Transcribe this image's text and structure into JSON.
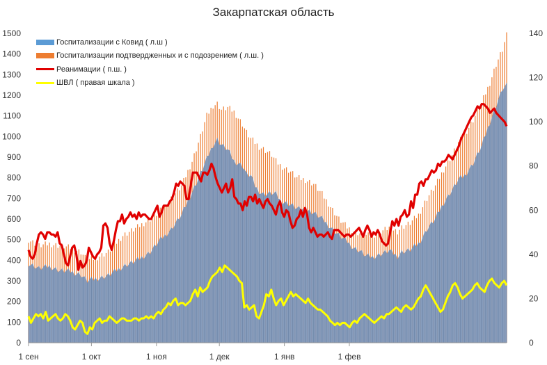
{
  "chart_data": {
    "type": "bar+line",
    "title": "Закарпатская область",
    "x_tick_labels": [
      "1 сен",
      "1 окт",
      "1 ноя",
      "1 дек",
      "1 янв",
      "1 фев"
    ],
    "left_axis": {
      "min": 0,
      "max": 1500,
      "ticks": [
        0,
        100,
        200,
        300,
        400,
        500,
        600,
        700,
        800,
        900,
        1000,
        1100,
        1200,
        1300,
        1400,
        1500
      ]
    },
    "right_axis": {
      "min": 0,
      "max": 140,
      "ticks": [
        0,
        20,
        40,
        60,
        80,
        100,
        120,
        140
      ]
    },
    "legend": [
      {
        "label": "Госпитализации с Ковид ( л.ш )",
        "color": "#5b9bd5",
        "kind": "area"
      },
      {
        "label": "Госпитализации подтвердженных и с подозрением ( л.ш. )",
        "color": "#ed7d31",
        "kind": "bar"
      },
      {
        "label": "Реанимации ( п.ш. )",
        "color": "#e00000",
        "kind": "line"
      },
      {
        "label": "ШВЛ ( правая шкала )",
        "color": "#ffff00",
        "kind": "line"
      }
    ],
    "series": [
      {
        "name": "Госпитализации с Ковид ( л.ш )",
        "axis": "left",
        "type": "area",
        "anchors": [
          [
            0,
            385
          ],
          [
            5,
            360
          ],
          [
            10,
            370
          ],
          [
            15,
            350
          ],
          [
            20,
            345
          ],
          [
            25,
            330
          ],
          [
            28,
            300
          ],
          [
            32,
            310
          ],
          [
            38,
            325
          ],
          [
            45,
            370
          ],
          [
            52,
            400
          ],
          [
            58,
            440
          ],
          [
            63,
            500
          ],
          [
            68,
            550
          ],
          [
            73,
            620
          ],
          [
            78,
            730
          ],
          [
            82,
            820
          ],
          [
            85,
            890
          ],
          [
            88,
            960
          ],
          [
            90,
            985
          ],
          [
            92,
            960
          ],
          [
            95,
            935
          ],
          [
            98,
            880
          ],
          [
            102,
            860
          ],
          [
            104,
            815
          ],
          [
            106,
            810
          ],
          [
            108,
            760
          ],
          [
            110,
            735
          ],
          [
            112,
            720
          ],
          [
            116,
            725
          ],
          [
            118,
            720
          ],
          [
            120,
            690
          ],
          [
            125,
            670
          ],
          [
            128,
            650
          ],
          [
            132,
            645
          ],
          [
            136,
            630
          ],
          [
            140,
            600
          ],
          [
            144,
            560
          ],
          [
            148,
            520
          ],
          [
            152,
            490
          ],
          [
            155,
            460
          ],
          [
            158,
            445
          ],
          [
            161,
            420
          ],
          [
            164,
            415
          ],
          [
            168,
            430
          ],
          [
            172,
            445
          ],
          [
            176,
            420
          ],
          [
            178,
            440
          ],
          [
            182,
            450
          ],
          [
            186,
            480
          ],
          [
            190,
            550
          ],
          [
            194,
            600
          ],
          [
            198,
            680
          ],
          [
            202,
            740
          ],
          [
            205,
            790
          ],
          [
            208,
            810
          ],
          [
            212,
            870
          ],
          [
            216,
            950
          ],
          [
            220,
            1070
          ],
          [
            223,
            1150
          ],
          [
            226,
            1230
          ],
          [
            228,
            1245
          ]
        ]
      },
      {
        "name": "Госпитализации подтвердженных и с подозрением ( л.ш. )",
        "axis": "left",
        "type": "bar",
        "anchors": [
          [
            0,
            500
          ],
          [
            5,
            470
          ],
          [
            10,
            480
          ],
          [
            15,
            470
          ],
          [
            20,
            460
          ],
          [
            25,
            440
          ],
          [
            28,
            400
          ],
          [
            32,
            410
          ],
          [
            38,
            440
          ],
          [
            45,
            520
          ],
          [
            52,
            560
          ],
          [
            58,
            600
          ],
          [
            63,
            640
          ],
          [
            68,
            700
          ],
          [
            73,
            760
          ],
          [
            78,
            880
          ],
          [
            82,
            1000
          ],
          [
            85,
            1100
          ],
          [
            88,
            1150
          ],
          [
            90,
            1160
          ],
          [
            92,
            1130
          ],
          [
            95,
            1140
          ],
          [
            98,
            1120
          ],
          [
            102,
            1060
          ],
          [
            104,
            1020
          ],
          [
            106,
            990
          ],
          [
            108,
            970
          ],
          [
            110,
            950
          ],
          [
            112,
            940
          ],
          [
            116,
            910
          ],
          [
            118,
            880
          ],
          [
            120,
            860
          ],
          [
            125,
            830
          ],
          [
            128,
            800
          ],
          [
            132,
            790
          ],
          [
            136,
            770
          ],
          [
            140,
            720
          ],
          [
            144,
            660
          ],
          [
            148,
            600
          ],
          [
            152,
            560
          ],
          [
            155,
            540
          ],
          [
            158,
            530
          ],
          [
            161,
            520
          ],
          [
            164,
            520
          ],
          [
            168,
            540
          ],
          [
            172,
            560
          ],
          [
            176,
            540
          ],
          [
            178,
            560
          ],
          [
            182,
            580
          ],
          [
            186,
            620
          ],
          [
            190,
            700
          ],
          [
            194,
            760
          ],
          [
            198,
            840
          ],
          [
            202,
            910
          ],
          [
            205,
            970
          ],
          [
            208,
            1010
          ],
          [
            212,
            1080
          ],
          [
            216,
            1160
          ],
          [
            220,
            1260
          ],
          [
            223,
            1350
          ],
          [
            226,
            1420
          ],
          [
            228,
            1490
          ]
        ]
      },
      {
        "name": "Реанимации ( п.ш. )",
        "axis": "right",
        "type": "line",
        "values": [
          42,
          39,
          38,
          40,
          45,
          49,
          50,
          49,
          47,
          50,
          50,
          49,
          49,
          48,
          50,
          45,
          44,
          40,
          36,
          35,
          39,
          43,
          44,
          40,
          33,
          37,
          34,
          35,
          37,
          43,
          41,
          39,
          38,
          40,
          41,
          43,
          53,
          54,
          52,
          45,
          42,
          46,
          51,
          55,
          55,
          58,
          54,
          56,
          57,
          59,
          57,
          58,
          56,
          59,
          57,
          58,
          58,
          57,
          56,
          56,
          58,
          60,
          62,
          57,
          59,
          62,
          62,
          62,
          64,
          65,
          68,
          72,
          71,
          73,
          72,
          71,
          65,
          65,
          71,
          77,
          77,
          77,
          75,
          73,
          77,
          77,
          76,
          78,
          81,
          79,
          75,
          72,
          70,
          68,
          70,
          72,
          68,
          70,
          74,
          66,
          65,
          63,
          63,
          60,
          64,
          62,
          66,
          66,
          64,
          67,
          63,
          65,
          63,
          61,
          64,
          65,
          63,
          62,
          60,
          58,
          62,
          64,
          59,
          57,
          60,
          59,
          55,
          52,
          53,
          56,
          57,
          60,
          57,
          61,
          58,
          52,
          50,
          52,
          50,
          48,
          49,
          49,
          48,
          49,
          50,
          48,
          47,
          51,
          51,
          51,
          50,
          49,
          48,
          49,
          49,
          48,
          49,
          50,
          51,
          52,
          50,
          48,
          51,
          53,
          51,
          48,
          50,
          49,
          51,
          49,
          46,
          45,
          44,
          45,
          50,
          55,
          53,
          56,
          53,
          57,
          58,
          60,
          57,
          58,
          64,
          61,
          67,
          67,
          72,
          73,
          71,
          74,
          74,
          76,
          78,
          77,
          78,
          81,
          80,
          82,
          82,
          83,
          85,
          84,
          83,
          85,
          87,
          89,
          92,
          94,
          96,
          98,
          100,
          102,
          103,
          105,
          107,
          106,
          108,
          108,
          107,
          106,
          104,
          105,
          106,
          104,
          103,
          102,
          101,
          100,
          98
        ]
      },
      {
        "name": "ШВЛ ( правая шкала )",
        "axis": "right",
        "type": "line",
        "values": [
          12,
          9,
          11,
          13,
          12,
          13,
          11,
          14,
          10,
          11,
          12,
          13,
          11,
          10,
          11,
          13,
          12,
          10,
          7,
          6,
          8,
          10,
          9,
          5,
          4,
          7,
          6,
          9,
          10,
          11,
          9,
          10,
          10,
          12,
          11,
          10,
          9,
          10,
          11,
          11,
          10,
          10,
          10,
          11,
          11,
          10,
          11,
          11,
          12,
          11,
          12,
          11,
          13,
          14,
          13,
          15,
          16,
          18,
          17,
          19,
          20,
          17,
          18,
          18,
          17,
          18,
          19,
          22,
          24,
          21,
          25,
          23,
          24,
          25,
          28,
          30,
          31,
          32,
          34,
          32,
          35,
          34,
          33,
          32,
          31,
          30,
          28,
          27,
          16,
          17,
          15,
          16,
          17,
          12,
          11,
          14,
          17,
          22,
          21,
          24,
          20,
          17,
          19,
          20,
          17,
          19,
          21,
          23,
          21,
          22,
          21,
          20,
          19,
          18,
          20,
          18,
          17,
          16,
          15,
          15,
          14,
          13,
          12,
          10,
          9,
          8,
          9,
          8,
          9,
          9,
          8,
          7,
          9,
          10,
          9,
          11,
          12,
          13,
          12,
          11,
          10,
          9,
          10,
          11,
          12,
          11,
          13,
          13,
          14,
          15,
          16,
          15,
          14,
          16,
          17,
          16,
          15,
          16,
          18,
          20,
          21,
          24,
          26,
          24,
          22,
          20,
          18,
          16,
          14,
          15,
          18,
          21,
          23,
          26,
          27,
          25,
          22,
          20,
          21,
          22,
          23,
          24,
          26,
          27,
          25,
          24,
          23,
          26,
          28,
          29,
          27,
          26,
          25,
          27,
          28,
          26
        ]
      }
    ]
  }
}
